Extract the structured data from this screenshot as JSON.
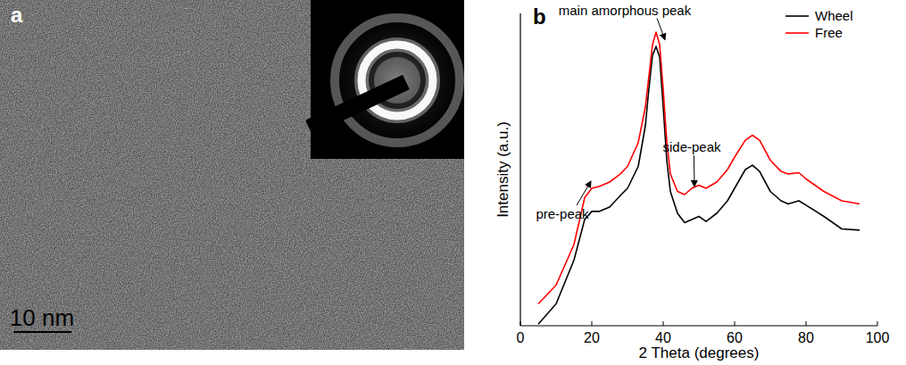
{
  "image_panel": {
    "label": "a",
    "scale_bar": "10 nm"
  },
  "chart_data": {
    "type": "line",
    "panel_label": "b",
    "x_label": "2 Theta (degrees)",
    "y_label": "Intensity (a.u.)",
    "x": [
      5,
      10,
      15,
      18,
      20,
      22,
      25,
      28,
      30,
      33,
      35,
      36,
      37,
      38,
      39,
      40,
      41,
      42,
      44,
      46,
      48,
      50,
      52,
      55,
      58,
      60,
      63,
      65,
      67,
      70,
      73,
      75,
      78,
      80,
      85,
      90,
      95
    ],
    "series": [
      {
        "name": "Wheel",
        "color": "#000000",
        "values": [
          0.5,
          7,
          21,
          34,
          36.6,
          36.6,
          38,
          41.7,
          44,
          51,
          64,
          76,
          86.6,
          89.4,
          86,
          70,
          53,
          43,
          36,
          33,
          34,
          35,
          33.4,
          36,
          40,
          44,
          50,
          51.4,
          49.4,
          43,
          40,
          39,
          40,
          38.6,
          35,
          31,
          30.6
        ]
      },
      {
        "name": "Free",
        "color": "#ff0000",
        "values": [
          7,
          13,
          26,
          41,
          44,
          44.6,
          46,
          48.6,
          51,
          58.6,
          70,
          80,
          90,
          94,
          90,
          75.7,
          59,
          48.6,
          43,
          42,
          44,
          45,
          44,
          46,
          50,
          54,
          59.4,
          61,
          59.4,
          53,
          49.4,
          48.6,
          49,
          47,
          43,
          40,
          39
        ]
      }
    ],
    "xlim": [
      0,
      100
    ],
    "xticks": [
      0,
      20,
      40,
      60,
      80,
      100
    ],
    "ylim": [
      0,
      100
    ],
    "yticks": [],
    "tick_labels": "x",
    "legend": "upper right",
    "annotations": [
      {
        "text": "main amorphous peak",
        "x": 40.5,
        "y": 91
      },
      {
        "text": "pre-peak",
        "x": 19.75,
        "y": 45.7
      },
      {
        "text": "side-peak",
        "x": 48.75,
        "y": 44
      }
    ]
  }
}
